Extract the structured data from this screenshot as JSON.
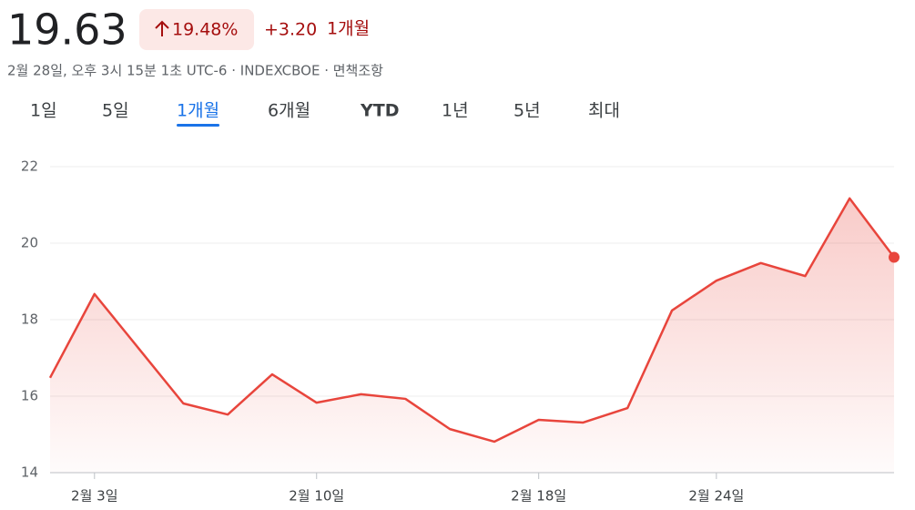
{
  "header": {
    "price": "19.63",
    "change_percent": "19.48%",
    "change": "+3.20",
    "period": "1개월",
    "subtitle": "2월 28일, 오후 3시 15분 1초 UTC-6 · INDEXCBOE · 면책조항"
  },
  "tabs": {
    "items": [
      "1일",
      "5일",
      "1개월",
      "6개월",
      "YTD",
      "1년",
      "5년",
      "최대"
    ],
    "active": 2
  },
  "chart_data": {
    "type": "line",
    "categories": [
      null,
      "2월 3일",
      null,
      null,
      null,
      null,
      "2월 10일",
      null,
      null,
      null,
      null,
      "2월 18일",
      null,
      null,
      null,
      "2월 24일",
      null,
      null,
      null,
      null
    ],
    "series": [
      {
        "name": "INDEXCBOE",
        "color": "#e8453c",
        "values": [
          16.48,
          18.67,
          17.24,
          15.81,
          15.52,
          16.57,
          15.83,
          16.05,
          15.93,
          15.14,
          14.81,
          15.38,
          15.31,
          15.69,
          18.24,
          19.02,
          19.48,
          19.14,
          21.17,
          19.63
        ]
      }
    ],
    "ylim": [
      14,
      22
    ],
    "yticks": [
      14,
      16,
      18,
      20,
      22
    ],
    "grid": true
  }
}
